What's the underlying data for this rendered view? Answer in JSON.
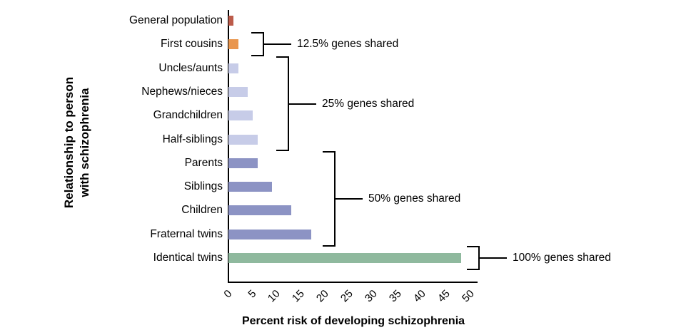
{
  "chart_data": {
    "type": "bar",
    "orientation": "horizontal",
    "title": "",
    "xlabel": "Percent risk of developing schizophrenia",
    "ylabel": "Relationship to person\nwith schizophrenia",
    "xlim": [
      0,
      50
    ],
    "xticks": [
      "0",
      "5",
      "10",
      "15",
      "20",
      "25",
      "30",
      "35",
      "40",
      "45",
      "50"
    ],
    "grid": false,
    "legend": null,
    "categories": [
      "General population",
      "First cousins",
      "Uncles/aunts",
      "Nephews/nieces",
      "Grandchildren",
      "Half-siblings",
      "Parents",
      "Siblings",
      "Children",
      "Fraternal twins",
      "Identical twins"
    ],
    "values": [
      1,
      2,
      2,
      4,
      5,
      6,
      6,
      9,
      13,
      17,
      48
    ],
    "bar_colors": [
      "#bc5b4a",
      "#e9964e",
      "#c7cce8",
      "#c7cce8",
      "#c7cce8",
      "#c7cce8",
      "#8c93c4",
      "#8c93c4",
      "#8c93c4",
      "#8c93c4",
      "#8fb99e"
    ],
    "axis_color": "#000000",
    "annotations": [
      {
        "label": "12.5% genes shared",
        "from_row": 1,
        "to_row": 1
      },
      {
        "label": "25% genes shared",
        "from_row": 2,
        "to_row": 5
      },
      {
        "label": "50% genes shared",
        "from_row": 6,
        "to_row": 9
      },
      {
        "label": "100% genes shared",
        "from_row": 10,
        "to_row": 10
      }
    ]
  }
}
